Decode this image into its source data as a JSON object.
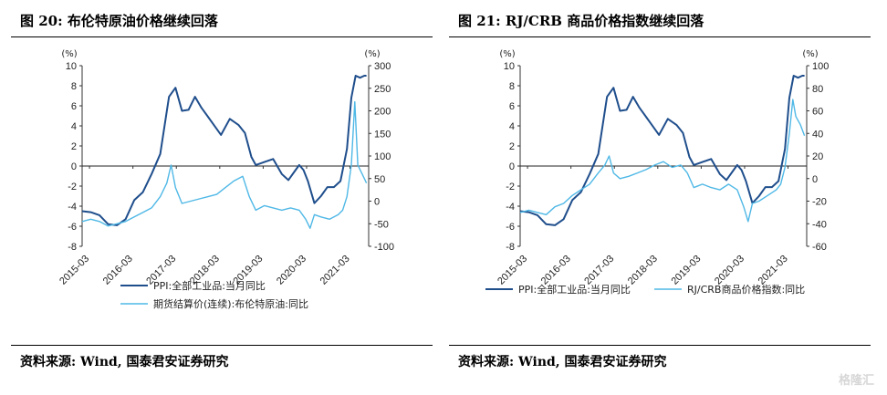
{
  "watermark": "格隆汇",
  "chart_data": [
    {
      "type": "line",
      "title": "图 20:  布伦特原油价格继续回落",
      "source": "资料来源: Wind, 国泰君安证券研究",
      "left_unit": "(%)",
      "right_unit": "(%)",
      "x_ticks": [
        "2015-03",
        "2016-03",
        "2017-03",
        "2018-03",
        "2019-03",
        "2020-03",
        "2021-03"
      ],
      "x_range": [
        2015.0,
        2021.6
      ],
      "left_ylim": [
        -8,
        10
      ],
      "left_ticks": [
        -8,
        -6,
        -4,
        -2,
        0,
        2,
        4,
        6,
        8,
        10
      ],
      "right_ylim": [
        -100,
        300
      ],
      "right_ticks": [
        -100,
        -50,
        0,
        50,
        100,
        150,
        200,
        250,
        300
      ],
      "series": [
        {
          "name": "PPI:全部工业品:当月同比",
          "axis": "left",
          "color": "#1f4e8c",
          "x": [
            2015.0,
            2015.2,
            2015.4,
            2015.6,
            2015.8,
            2016.0,
            2016.2,
            2016.4,
            2016.6,
            2016.8,
            2017.0,
            2017.15,
            2017.3,
            2017.45,
            2017.6,
            2017.75,
            2017.9,
            2018.0,
            2018.2,
            2018.4,
            2018.6,
            2018.75,
            2018.9,
            2019.0,
            2019.2,
            2019.4,
            2019.6,
            2019.75,
            2019.9,
            2020.0,
            2020.1,
            2020.2,
            2020.35,
            2020.5,
            2020.65,
            2020.8,
            2020.95,
            2021.1,
            2021.2,
            2021.3,
            2021.4,
            2021.5,
            2021.55
          ],
          "values": [
            -4.5,
            -4.6,
            -4.9,
            -5.8,
            -5.9,
            -5.3,
            -3.4,
            -2.6,
            -0.8,
            1.2,
            6.9,
            7.8,
            5.5,
            5.6,
            6.9,
            5.8,
            4.9,
            4.3,
            3.1,
            4.7,
            4.1,
            3.3,
            0.9,
            0.1,
            0.4,
            0.7,
            -0.8,
            -1.4,
            -0.5,
            0.1,
            -0.4,
            -1.5,
            -3.7,
            -3.0,
            -2.1,
            -2.1,
            -1.5,
            1.7,
            6.8,
            9.0,
            8.8,
            9.0,
            9.0
          ]
        },
        {
          "name": "期货结算价(连续):布伦特原油:同比",
          "axis": "right",
          "color": "#4fb8e6",
          "x": [
            2015.0,
            2015.2,
            2015.4,
            2015.6,
            2015.8,
            2016.0,
            2016.2,
            2016.4,
            2016.6,
            2016.8,
            2016.95,
            2017.05,
            2017.15,
            2017.3,
            2017.5,
            2017.7,
            2017.9,
            2018.1,
            2018.3,
            2018.5,
            2018.7,
            2018.85,
            2019.0,
            2019.2,
            2019.4,
            2019.6,
            2019.8,
            2020.0,
            2020.15,
            2020.25,
            2020.35,
            2020.5,
            2020.7,
            2020.9,
            2021.0,
            2021.1,
            2021.2,
            2021.28,
            2021.35,
            2021.45,
            2021.55
          ],
          "values": [
            -45,
            -40,
            -45,
            -55,
            -50,
            -45,
            -35,
            -25,
            -15,
            10,
            40,
            80,
            30,
            -5,
            0,
            5,
            10,
            15,
            30,
            45,
            55,
            10,
            -20,
            -10,
            -15,
            -20,
            -15,
            -20,
            -40,
            -60,
            -30,
            -35,
            -40,
            -30,
            -20,
            10,
            80,
            220,
            80,
            60,
            40
          ]
        }
      ]
    },
    {
      "type": "line",
      "title": "图 21:  RJ/CRB 商品价格指数继续回落",
      "source": "资料来源: Wind, 国泰君安证券研究",
      "left_unit": "(%)",
      "right_unit": "(%)",
      "x_ticks": [
        "2015-03",
        "2016-03",
        "2017-03",
        "2018-03",
        "2019-03",
        "2020-03",
        "2021-03"
      ],
      "x_range": [
        2015.0,
        2021.6
      ],
      "left_ylim": [
        -8,
        10
      ],
      "left_ticks": [
        -8,
        -6,
        -4,
        -2,
        0,
        2,
        4,
        6,
        8,
        10
      ],
      "right_ylim": [
        -60,
        100
      ],
      "right_ticks": [
        -60,
        -40,
        -20,
        0,
        20,
        40,
        60,
        80,
        100
      ],
      "series": [
        {
          "name": "PPI:全部工业品:当月同比",
          "axis": "left",
          "color": "#1f4e8c",
          "x": [
            2015.0,
            2015.2,
            2015.4,
            2015.6,
            2015.8,
            2016.0,
            2016.2,
            2016.4,
            2016.6,
            2016.8,
            2017.0,
            2017.15,
            2017.3,
            2017.45,
            2017.6,
            2017.75,
            2017.9,
            2018.0,
            2018.2,
            2018.4,
            2018.6,
            2018.75,
            2018.9,
            2019.0,
            2019.2,
            2019.4,
            2019.6,
            2019.75,
            2019.9,
            2020.0,
            2020.1,
            2020.2,
            2020.35,
            2020.5,
            2020.65,
            2020.8,
            2020.95,
            2021.1,
            2021.2,
            2021.3,
            2021.4,
            2021.5,
            2021.55
          ],
          "values": [
            -4.5,
            -4.6,
            -4.9,
            -5.8,
            -5.9,
            -5.3,
            -3.4,
            -2.6,
            -0.8,
            1.2,
            6.9,
            7.8,
            5.5,
            5.6,
            6.9,
            5.8,
            4.9,
            4.3,
            3.1,
            4.7,
            4.1,
            3.3,
            0.9,
            0.1,
            0.4,
            0.7,
            -0.8,
            -1.4,
            -0.5,
            0.1,
            -0.4,
            -1.5,
            -3.7,
            -3.0,
            -2.1,
            -2.1,
            -1.5,
            1.7,
            6.8,
            9.0,
            8.8,
            9.0,
            9.0
          ]
        },
        {
          "name": "RJ/CRB商品价格指数:同比",
          "axis": "right",
          "color": "#4fb8e6",
          "x": [
            2015.0,
            2015.2,
            2015.4,
            2015.6,
            2015.8,
            2016.0,
            2016.2,
            2016.4,
            2016.6,
            2016.8,
            2016.95,
            2017.05,
            2017.15,
            2017.3,
            2017.5,
            2017.7,
            2017.9,
            2018.1,
            2018.3,
            2018.5,
            2018.7,
            2018.85,
            2019.0,
            2019.2,
            2019.4,
            2019.6,
            2019.8,
            2020.0,
            2020.15,
            2020.25,
            2020.35,
            2020.5,
            2020.7,
            2020.9,
            2021.0,
            2021.1,
            2021.2,
            2021.28,
            2021.35,
            2021.45,
            2021.55
          ],
          "values": [
            -30,
            -28,
            -30,
            -32,
            -25,
            -22,
            -15,
            -10,
            -5,
            5,
            12,
            20,
            5,
            0,
            2,
            5,
            8,
            12,
            15,
            10,
            12,
            5,
            -8,
            -5,
            -8,
            -10,
            -5,
            -10,
            -25,
            -38,
            -22,
            -20,
            -15,
            -10,
            -5,
            10,
            40,
            70,
            55,
            48,
            38
          ]
        }
      ]
    }
  ]
}
